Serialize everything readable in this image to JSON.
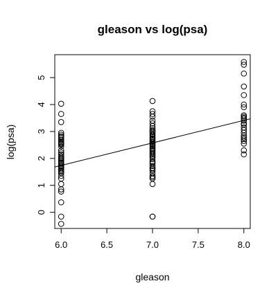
{
  "chart_data": {
    "type": "scatter",
    "title": "gleason vs log(psa)",
    "xlabel": "gleason",
    "ylabel": "log(psa)",
    "xlim": [
      5.93,
      8.07
    ],
    "ylim": [
      -0.6,
      5.85
    ],
    "xticks": [
      6.0,
      6.5,
      7.0,
      7.5,
      8.0
    ],
    "xtick_labels": [
      "6.0",
      "6.5",
      "7.0",
      "7.5",
      "8.0"
    ],
    "yticks": [
      0,
      1,
      2,
      3,
      4,
      5
    ],
    "ytick_labels": [
      "0",
      "1",
      "2",
      "3",
      "4",
      "5"
    ],
    "grid": false,
    "series": [
      {
        "x": [
          6,
          6,
          6,
          6,
          6,
          6,
          6,
          6,
          6,
          6,
          6,
          6,
          6,
          6,
          6,
          6,
          6,
          6,
          6,
          6,
          6,
          6,
          6,
          6,
          6,
          6,
          6,
          6,
          6,
          6,
          6,
          6,
          6,
          6,
          6,
          6,
          6,
          6,
          6,
          6,
          7,
          7,
          7,
          7,
          7,
          7,
          7,
          7,
          7,
          7,
          7,
          7,
          7,
          7,
          7,
          7,
          7,
          7,
          7,
          7,
          7,
          7,
          7,
          7,
          7,
          7,
          7,
          7,
          7,
          7,
          7,
          7,
          7,
          7,
          7,
          7,
          7,
          7,
          7,
          7,
          7,
          7,
          7,
          7,
          7,
          7,
          7,
          8,
          8,
          8,
          8,
          8,
          8,
          8,
          8,
          8,
          8,
          8,
          8,
          8,
          8,
          8,
          8,
          8,
          8,
          8,
          8,
          8,
          8,
          8,
          8
        ],
        "y": [
          -0.43,
          -0.16,
          0.37,
          0.77,
          0.85,
          1.05,
          1.25,
          1.45,
          1.55,
          1.6,
          1.65,
          1.7,
          1.72,
          1.78,
          1.85,
          1.9,
          1.95,
          2.0,
          2.03,
          2.08,
          2.15,
          2.3,
          2.45,
          2.55,
          2.62,
          2.7,
          2.78,
          2.82,
          2.88,
          2.95,
          3.35,
          3.65,
          4.03,
          1.35,
          1.5,
          1.82,
          2.22,
          2.58,
          2.68,
          2.52,
          -0.16,
          -0.16,
          1.05,
          1.25,
          1.35,
          1.45,
          1.55,
          1.65,
          1.72,
          1.8,
          1.85,
          1.98,
          2.05,
          2.15,
          2.2,
          2.25,
          2.3,
          2.38,
          2.45,
          2.55,
          2.6,
          2.68,
          2.75,
          2.8,
          2.85,
          2.92,
          3.0,
          3.05,
          3.2,
          3.3,
          3.55,
          3.65,
          3.75,
          4.13,
          1.88,
          2.1,
          2.35,
          2.48,
          2.62,
          2.9,
          2.98,
          1.6,
          1.3,
          2.72,
          3.12,
          3.4,
          2.52,
          2.15,
          2.3,
          2.55,
          2.65,
          2.72,
          2.85,
          2.95,
          3.05,
          3.15,
          3.3,
          3.4,
          3.48,
          3.55,
          3.6,
          3.9,
          4.0,
          4.35,
          4.67,
          5.15,
          5.48,
          5.58,
          2.78,
          3.25,
          3.5
        ]
      }
    ],
    "regression_line": {
      "x": [
        5.93,
        8.07
      ],
      "y": [
        1.68,
        3.47
      ]
    }
  }
}
